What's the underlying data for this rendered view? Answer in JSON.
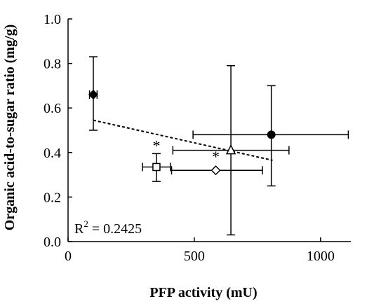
{
  "chart_data": {
    "type": "scatter",
    "title": "",
    "xlabel": "PFP activity (mU)",
    "ylabel": "Organic acid-to-sugar ratio (mg/g)",
    "xlim": [
      0,
      1120
    ],
    "ylim": [
      0,
      1.0
    ],
    "x_ticks": [
      0,
      500,
      1000
    ],
    "y_ticks": [
      0.0,
      0.2,
      0.4,
      0.6,
      0.8,
      1.0
    ],
    "x_tick_labels": [
      "0",
      "500",
      "1000"
    ],
    "y_tick_labels": [
      "0.0",
      "0.2",
      "0.4",
      "0.6",
      "0.8",
      "1.0"
    ],
    "grid": false,
    "points": [
      {
        "marker": "diamond-filled",
        "x": 100,
        "y": 0.66,
        "x_err": 15,
        "y_lo": 0.5,
        "y_hi": 0.83,
        "star": false
      },
      {
        "marker": "square-open",
        "x": 350,
        "y": 0.335,
        "x_err": 55,
        "y_lo": 0.27,
        "y_hi": 0.395,
        "star": true
      },
      {
        "marker": "diamond-open",
        "x": 585,
        "y": 0.32,
        "x_err_lo": 175,
        "x_err_hi": 185,
        "y_lo": 0.32,
        "y_hi": 0.32,
        "star": true
      },
      {
        "marker": "triangle-open",
        "x": 645,
        "y": 0.41,
        "x_err": 230,
        "y_lo": 0.03,
        "y_hi": 0.79,
        "star": false
      },
      {
        "marker": "circle-filled",
        "x": 805,
        "y": 0.48,
        "x_err_lo": 310,
        "x_err_hi": 305,
        "y_lo": 0.25,
        "y_hi": 0.7,
        "star": false
      }
    ],
    "trendline": {
      "style": "dashed",
      "x": [
        100,
        810
      ],
      "y": [
        0.545,
        0.365
      ]
    },
    "annotations": {
      "star_label": "*",
      "r2_prefix": "R",
      "r2_sup": "2",
      "r2_value": " = 0.2425"
    }
  }
}
